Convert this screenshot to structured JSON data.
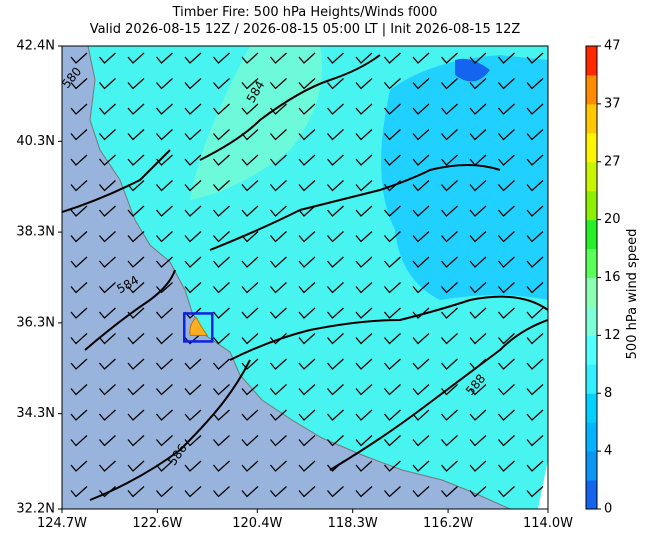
{
  "title": "Timber Fire: 500 hPa Heights/Winds f000",
  "subtitle": "Valid 2026-08-15 12Z / 2026-08-15 05:00 LT | Init 2026-08-15 12Z",
  "map": {
    "xlim": [
      -124.7,
      -114.0
    ],
    "ylim": [
      32.2,
      42.4
    ],
    "xticks": [
      {
        "value": -124.7,
        "label": "124.7W"
      },
      {
        "value": -122.6,
        "label": "122.6W"
      },
      {
        "value": -120.4,
        "label": "120.4W"
      },
      {
        "value": -118.3,
        "label": "118.3W"
      },
      {
        "value": -116.2,
        "label": "116.2W"
      },
      {
        "value": -114.0,
        "label": "114.0W"
      }
    ],
    "yticks": [
      {
        "value": 32.2,
        "label": "32.2N"
      },
      {
        "value": 34.3,
        "label": "34.3N"
      },
      {
        "value": 36.3,
        "label": "36.3N"
      },
      {
        "value": 38.3,
        "label": "38.3N"
      },
      {
        "value": 40.3,
        "label": "40.3N"
      },
      {
        "value": 42.4,
        "label": "42.4N"
      }
    ],
    "fire": {
      "lon": -121.7,
      "lat": 36.2
    },
    "contour_labels": [
      580,
      584,
      584,
      586,
      588
    ]
  },
  "colorbar": {
    "label": "500 hPa wind speed",
    "ticks": [
      0,
      4,
      8,
      12,
      16,
      20,
      27,
      37,
      47
    ],
    "colors": [
      "#1464f0",
      "#0a96f5",
      "#00b4ff",
      "#00d2ff",
      "#32f0ff",
      "#50ffff",
      "#7dffd7",
      "#8cffb4",
      "#5aff5a",
      "#28f028",
      "#8cf000",
      "#c8f500",
      "#fff500",
      "#ffc800",
      "#ff8c00",
      "#ff2800"
    ]
  }
}
